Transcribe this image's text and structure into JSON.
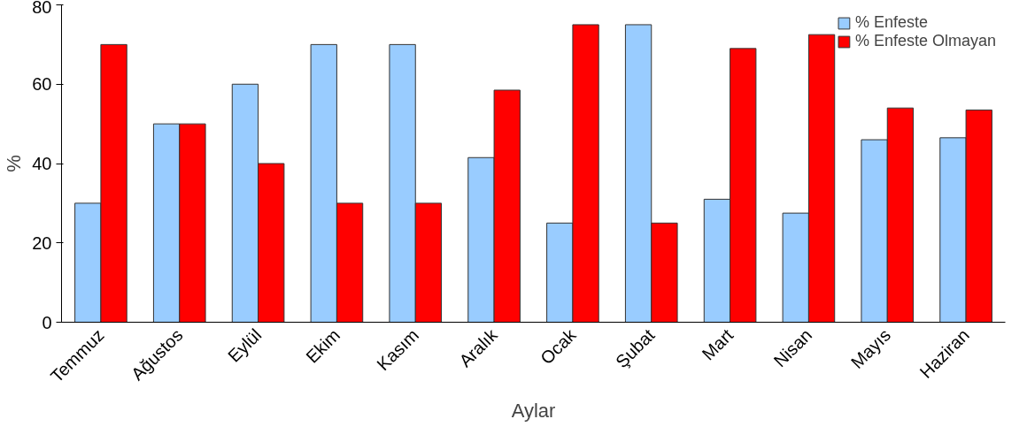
{
  "chart_data": {
    "type": "bar",
    "xlabel": "Aylar",
    "ylabel": "%",
    "categories": [
      "Temmuz",
      "Ağustos",
      "Eylül",
      "Ekim",
      "Kasım",
      "Aralık",
      "Ocak",
      "Şubat",
      "Mart",
      "Nisan",
      "Mayıs",
      "Haziran"
    ],
    "series": [
      {
        "name": "% Enfeste",
        "color": "#99ccff",
        "values": [
          30,
          50,
          60,
          70,
          70,
          41.5,
          25,
          75,
          31,
          27.5,
          46,
          46.5
        ]
      },
      {
        "name": "% Enfeste Olmayan",
        "color": "#ff0000",
        "values": [
          70,
          50,
          40,
          30,
          30,
          58.5,
          75,
          25,
          69,
          72.5,
          54,
          53.5
        ]
      }
    ],
    "ylim": [
      0,
      80
    ],
    "yticks": [
      0,
      20,
      40,
      60,
      80
    ],
    "grid": false,
    "legend": "top right"
  }
}
